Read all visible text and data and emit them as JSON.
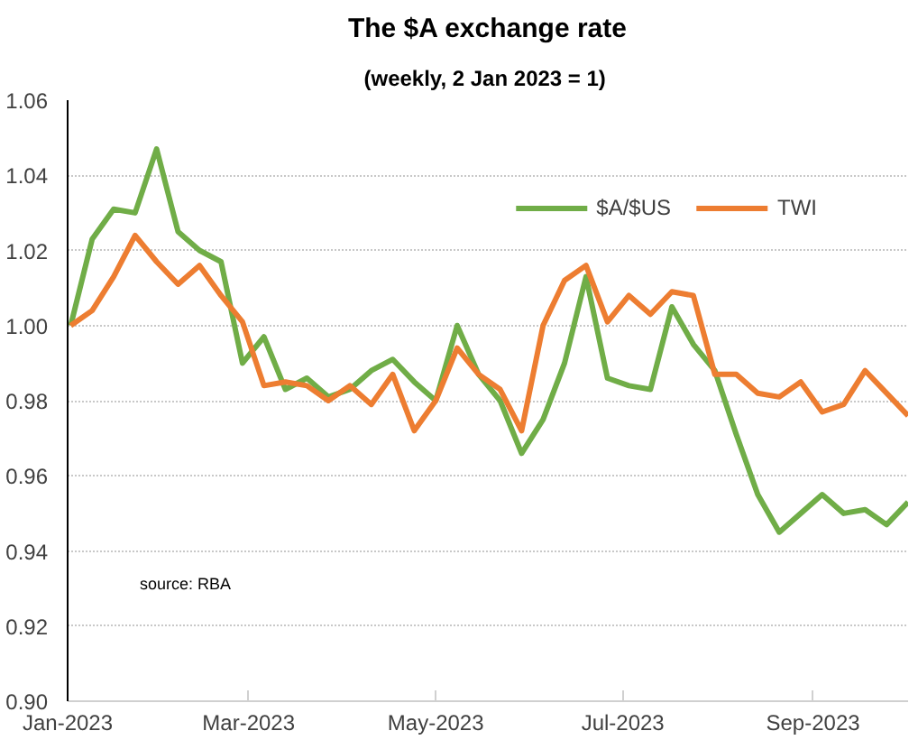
{
  "chart_data": {
    "type": "line",
    "title": "The $A exchange rate",
    "subtitle": "(weekly, 2 Jan 2023  = 1)",
    "x": [
      "2023-01-02",
      "2023-01-09",
      "2023-01-16",
      "2023-01-23",
      "2023-01-30",
      "2023-02-06",
      "2023-02-13",
      "2023-02-20",
      "2023-02-27",
      "2023-03-06",
      "2023-03-13",
      "2023-03-20",
      "2023-03-27",
      "2023-04-03",
      "2023-04-10",
      "2023-04-17",
      "2023-04-24",
      "2023-05-01",
      "2023-05-08",
      "2023-05-15",
      "2023-05-22",
      "2023-05-29",
      "2023-06-05",
      "2023-06-12",
      "2023-06-19",
      "2023-06-26",
      "2023-07-03",
      "2023-07-10",
      "2023-07-17",
      "2023-07-24",
      "2023-07-31",
      "2023-08-07",
      "2023-08-14",
      "2023-08-21",
      "2023-08-28",
      "2023-09-04",
      "2023-09-11",
      "2023-09-18",
      "2023-09-25",
      "2023-10-02"
    ],
    "series": [
      {
        "name": "$A/$US",
        "color": "#70ad47",
        "values": [
          1.0,
          1.023,
          1.031,
          1.03,
          1.047,
          1.025,
          1.02,
          1.017,
          0.99,
          0.997,
          0.983,
          0.986,
          0.981,
          0.983,
          0.988,
          0.991,
          0.985,
          0.98,
          1.0,
          0.987,
          0.98,
          0.966,
          0.975,
          0.99,
          1.013,
          0.986,
          0.984,
          0.983,
          1.005,
          0.995,
          0.988,
          0.971,
          0.955,
          0.945,
          0.95,
          0.955,
          0.95,
          0.951,
          0.947,
          0.953
        ]
      },
      {
        "name": "TWI",
        "color": "#ed7d31",
        "values": [
          1.0,
          1.004,
          1.013,
          1.024,
          1.017,
          1.011,
          1.016,
          1.008,
          1.001,
          0.984,
          0.985,
          0.984,
          0.98,
          0.984,
          0.979,
          0.987,
          0.972,
          0.98,
          0.994,
          0.987,
          0.983,
          0.972,
          1.0,
          1.012,
          1.016,
          1.001,
          1.008,
          1.003,
          1.009,
          1.008,
          0.987,
          0.987,
          0.982,
          0.981,
          0.985,
          0.977,
          0.979,
          0.988,
          0.982,
          0.976
        ]
      }
    ],
    "xlim": [
      "2023-01-01",
      "2023-10-02"
    ],
    "xticks": [
      {
        "value": "2023-01-01",
        "label": "Jan-2023"
      },
      {
        "value": "2023-03-01",
        "label": "Mar-2023"
      },
      {
        "value": "2023-05-01",
        "label": "May-2023"
      },
      {
        "value": "2023-07-01",
        "label": "Jul-2023"
      },
      {
        "value": "2023-09-01",
        "label": "Sep-2023"
      }
    ],
    "ylim": [
      0.9,
      1.06
    ],
    "yticks": [
      {
        "value": 0.9,
        "label": "0.90"
      },
      {
        "value": 0.92,
        "label": "0.92"
      },
      {
        "value": 0.94,
        "label": "0.94"
      },
      {
        "value": 0.96,
        "label": "0.96"
      },
      {
        "value": 0.98,
        "label": "0.98"
      },
      {
        "value": 1.0,
        "label": "1.00"
      },
      {
        "value": 1.02,
        "label": "1.02"
      },
      {
        "value": 1.04,
        "label": "1.04"
      },
      {
        "value": 1.06,
        "label": "1.06"
      }
    ],
    "grid": "y",
    "legend": "top right",
    "line_style": "solid",
    "annotations": [
      "source:  RBA"
    ]
  }
}
